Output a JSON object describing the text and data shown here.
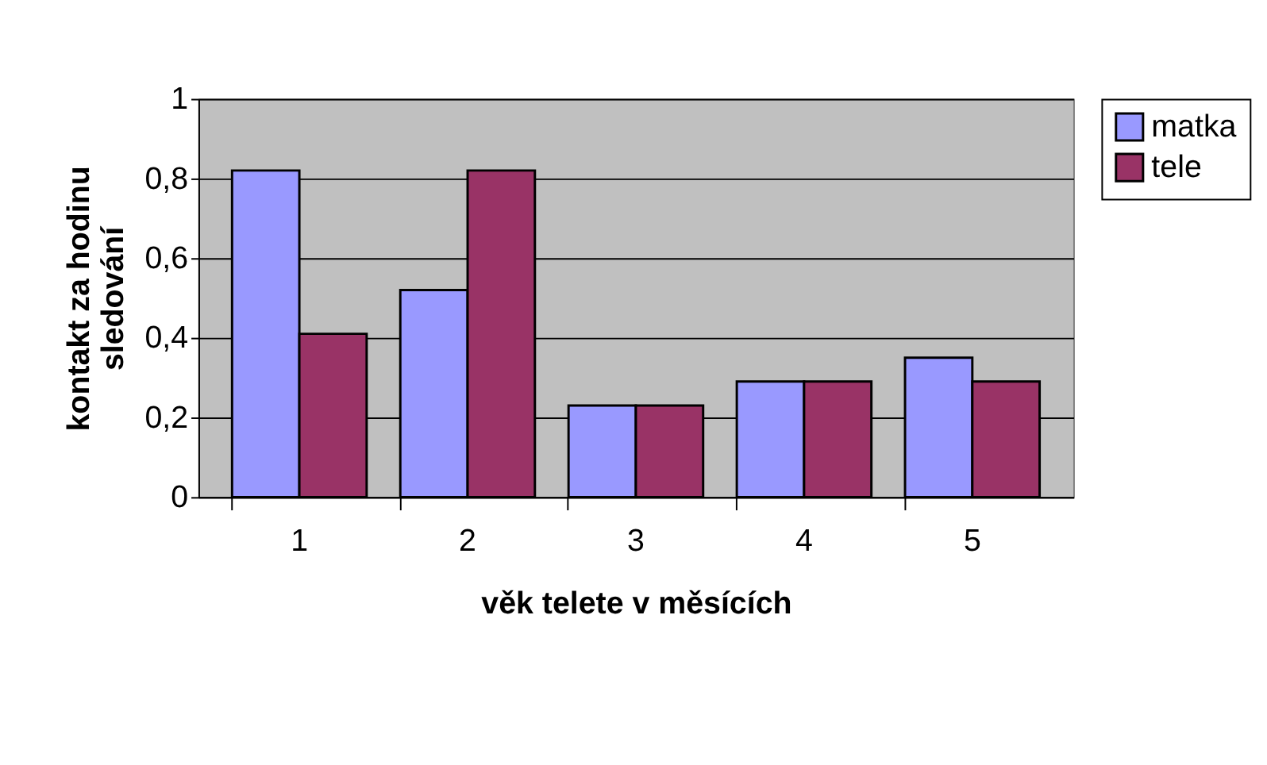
{
  "chart_data": {
    "type": "bar",
    "xlabel": "věk telete v měsících",
    "ylabel": "kontakt za hodinu\nsledování",
    "categories": [
      "1",
      "2",
      "3",
      "4",
      "5"
    ],
    "series": [
      {
        "name": "matka",
        "color": "#9999ff",
        "values": [
          0.82,
          0.52,
          0.23,
          0.29,
          0.35
        ]
      },
      {
        "name": "tele",
        "color": "#993366",
        "values": [
          0.41,
          0.82,
          0.23,
          0.29,
          0.29
        ]
      }
    ],
    "ylim": [
      0,
      1
    ],
    "yticks": [
      0,
      {
        "value": 0.2,
        "label": "0,2"
      },
      {
        "value": 0.4,
        "label": "0,4"
      },
      {
        "value": 0.6,
        "label": "0,6"
      },
      {
        "value": 0.8,
        "label": "0,8"
      },
      1
    ],
    "grid": "y",
    "legend": "right"
  }
}
